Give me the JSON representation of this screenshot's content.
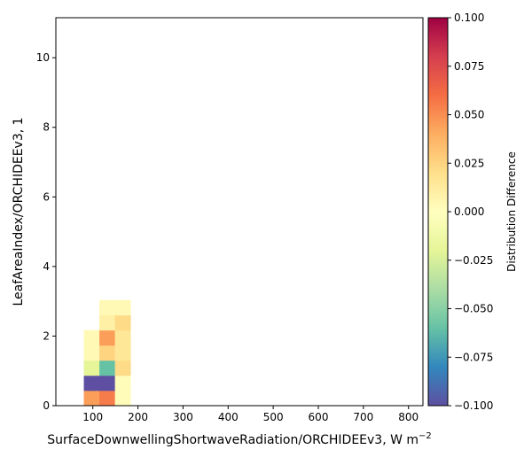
{
  "chart_data": {
    "type": "heatmap",
    "title": "",
    "xlabel": "SurfaceDownwellingShortwaveRadiation/ORCHIDEEv3,  W m",
    "xlabel_superscript": "−2",
    "ylabel": "LeafAreaIndex/ORCHIDEEv3,  1",
    "colorbar_label": "Distribution Difference",
    "colormap": "Spectral_r",
    "xlim": [
      18,
      832
    ],
    "ylim": [
      0,
      11.15
    ],
    "vmin": -0.1,
    "vmax": 0.1,
    "xticks": [
      100,
      200,
      300,
      400,
      500,
      600,
      700,
      800
    ],
    "yticks": [
      0,
      2,
      4,
      6,
      8,
      10
    ],
    "colorbar_ticks": [
      "−0.100",
      "−0.075",
      "−0.050",
      "−0.025",
      "0.000",
      "0.025",
      "0.050",
      "0.075",
      "0.100"
    ],
    "colorbar_tick_values": [
      -0.1,
      -0.075,
      -0.05,
      -0.025,
      0.0,
      0.025,
      0.05,
      0.075,
      0.1
    ],
    "bin_width_x": 34.5,
    "bin_height_y": 0.434,
    "cells": [
      {
        "x0": 80,
        "y0": 0.0,
        "value": 0.045
      },
      {
        "x0": 114.5,
        "y0": 0.0,
        "value": 0.055
      },
      {
        "x0": 149,
        "y0": 0.0,
        "value": 0.002
      },
      {
        "x0": 80,
        "y0": 0.434,
        "value": -0.1
      },
      {
        "x0": 114.5,
        "y0": 0.434,
        "value": -0.1
      },
      {
        "x0": 149,
        "y0": 0.434,
        "value": 0.002
      },
      {
        "x0": 80,
        "y0": 0.868,
        "value": -0.02
      },
      {
        "x0": 114.5,
        "y0": 0.868,
        "value": -0.06
      },
      {
        "x0": 149,
        "y0": 0.868,
        "value": 0.022
      },
      {
        "x0": 80,
        "y0": 1.302,
        "value": 0.004
      },
      {
        "x0": 114.5,
        "y0": 1.302,
        "value": 0.025
      },
      {
        "x0": 149,
        "y0": 1.302,
        "value": 0.015
      },
      {
        "x0": 80,
        "y0": 1.736,
        "value": 0.004
      },
      {
        "x0": 114.5,
        "y0": 1.736,
        "value": 0.045
      },
      {
        "x0": 149,
        "y0": 1.736,
        "value": 0.015
      },
      {
        "x0": 114.5,
        "y0": 2.17,
        "value": 0.01
      },
      {
        "x0": 149,
        "y0": 2.17,
        "value": 0.022
      },
      {
        "x0": 114.5,
        "y0": 2.604,
        "value": 0.004
      },
      {
        "x0": 149,
        "y0": 2.604,
        "value": 0.004
      }
    ]
  }
}
